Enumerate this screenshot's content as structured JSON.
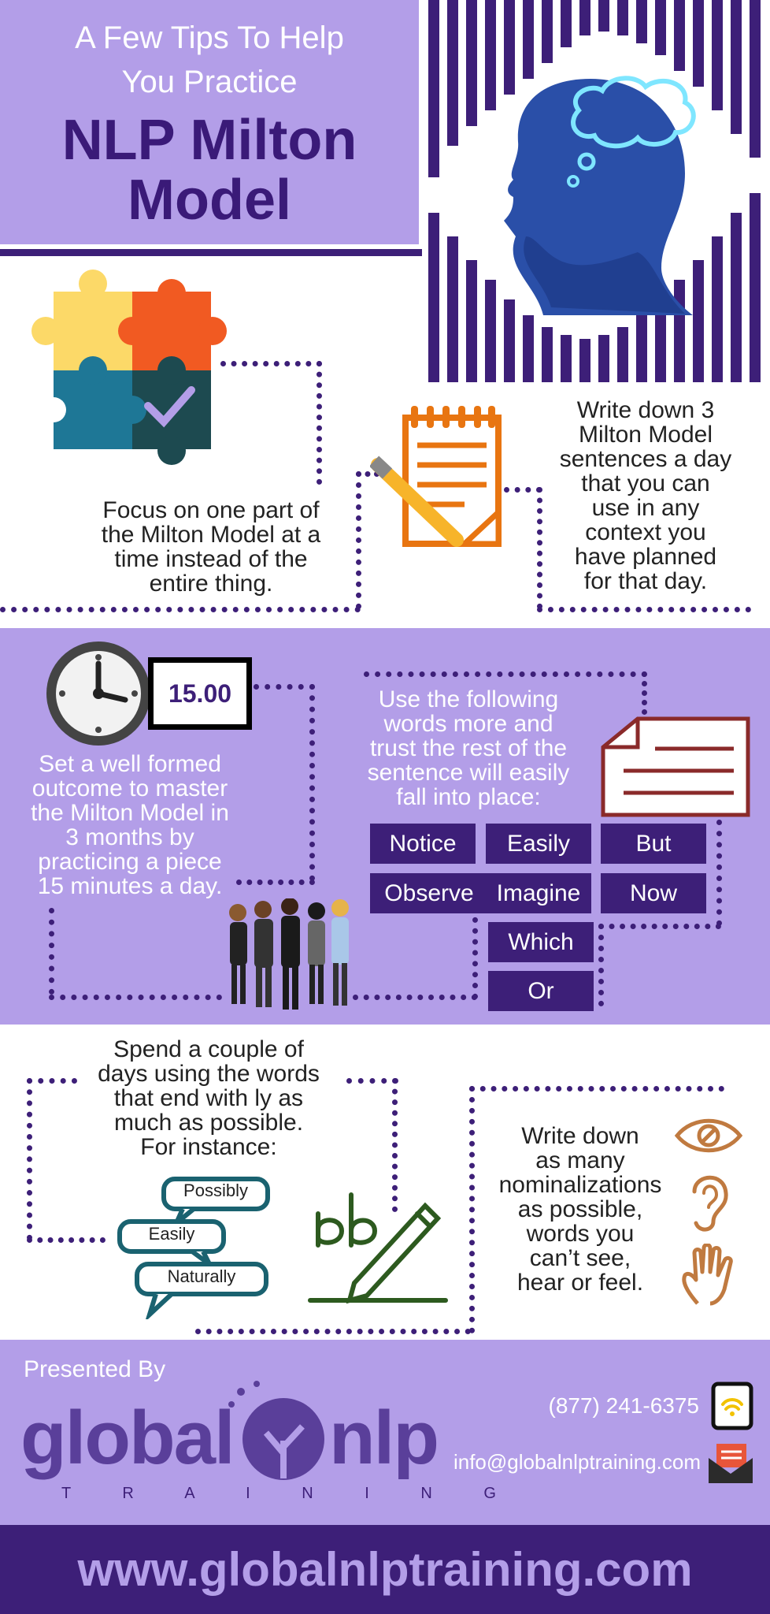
{
  "header": {
    "subtitle_line1": "A Few Tips To Help",
    "subtitle_line2": "You Practice",
    "title_line1": "NLP Milton",
    "title_line2": "Model"
  },
  "tip_focus": [
    "Focus on one part of",
    "the Milton Model at a",
    "time instead of the",
    "entire thing."
  ],
  "tip_write": [
    "Write down 3",
    "Milton Model",
    "sentences a day",
    "that you can",
    "use in any",
    "context you",
    "have planned",
    "for that day."
  ],
  "clock_label": "15.00",
  "tip_outcome": [
    "Set a well formed",
    "outcome to master",
    "the Milton Model in",
    "3 months by",
    "practicing a piece",
    "15 minutes a day."
  ],
  "tip_words": [
    "Use the following",
    "words more and",
    "trust the rest of the",
    "sentence will easily",
    "fall into place:"
  ],
  "word_boxes": [
    "Notice",
    "Easily",
    "But",
    "Observe",
    "Imagine",
    "Now",
    "Which",
    "Or"
  ],
  "tip_ly": [
    "Spend a couple of",
    "days using the words",
    "that end with ly as",
    "much as possible.",
    "For instance:"
  ],
  "ly_examples": [
    "Possibly",
    "Easily",
    "Naturally"
  ],
  "tip_nominal": [
    "Write down",
    "as many",
    "nominalizations",
    "as possible,",
    "words you",
    "can’t see,",
    "hear or feel."
  ],
  "footer": {
    "presented_by": "Presented By",
    "logo_left": "global",
    "logo_right": "nlp",
    "logo_sub": "T R A I N I N G",
    "phone": "(877) 241-6375",
    "email": "info@globalnlptraining.com",
    "website": "www.globalnlptraining.com"
  },
  "colors": {
    "lavender": "#b39ee8",
    "dark_purple": "#3d1f78",
    "orange": "#e87511",
    "teal": "#1a6270",
    "green": "#2d5a1f",
    "brown": "#c07a40"
  },
  "icons": [
    "puzzle-icon",
    "brain-head-icon",
    "notepad-pencil-icon",
    "clock-icon",
    "document-icon",
    "people-group-icon",
    "speech-bubbles-icon",
    "ab-pen-icon",
    "eye-icon",
    "ear-icon",
    "hand-icon",
    "tablet-icon",
    "mail-icon"
  ]
}
